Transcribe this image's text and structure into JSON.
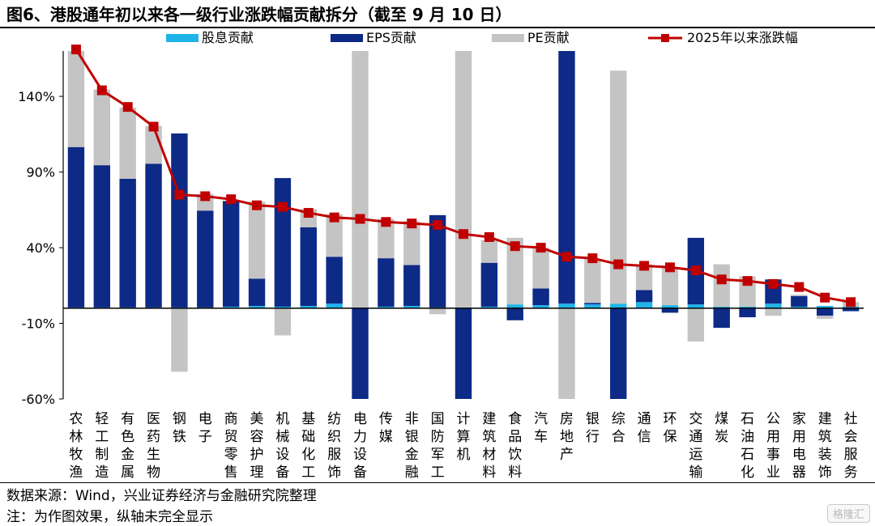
{
  "title": "图6、港股通年初以来各一级行业涨跌幅贡献拆分（截至 9 月 10 日）",
  "source": "数据来源：Wind，兴业证券经济与金融研究院整理",
  "note": "注：为作图效果，纵轴未完全显示",
  "watermark": "格隆汇",
  "colors": {
    "dividend": "#1fb4e8",
    "eps": "#0d2a86",
    "pe": "#c4c4c4",
    "line": "#c00000"
  },
  "chart_data": {
    "type": "bar",
    "stacked": true,
    "categories": [
      "农林牧渔",
      "轻工制造",
      "有色金属",
      "医药生物",
      "钢铁",
      "电子",
      "商贸零售",
      "美容护理",
      "机械设备",
      "基础化工",
      "纺织服饰",
      "电力设备",
      "传媒",
      "非银金融",
      "国防军工",
      "计算机",
      "建筑材料",
      "食品饮料",
      "汽车",
      "房地产",
      "银行",
      "综合",
      "通信",
      "环保",
      "交通运输",
      "煤炭",
      "石油石化",
      "公用事业",
      "家用电器",
      "建筑装饰",
      "社会服务"
    ],
    "yticks": [
      140,
      90,
      40,
      -10,
      -60
    ],
    "ytick_labels": [
      "140%",
      "90%",
      "40%",
      "-10%",
      "-60%"
    ],
    "ylim": [
      -60,
      170
    ],
    "series": [
      {
        "name": "股息贡献",
        "kind": "bar",
        "values": [
          0.5,
          0.5,
          0.5,
          0.5,
          0.5,
          0.5,
          1,
          1.5,
          1,
          1.5,
          3,
          0.5,
          1,
          1.5,
          0.5,
          0.5,
          1,
          2.5,
          2,
          3,
          2.5,
          3,
          4,
          2,
          2.5,
          1,
          1,
          3,
          1,
          1.5,
          1
        ]
      },
      {
        "name": "EPS贡献",
        "kind": "bar",
        "values": [
          106,
          94,
          85,
          95,
          115,
          64,
          70,
          18,
          85,
          52,
          31,
          -62,
          32,
          27,
          61,
          -62,
          29,
          -8,
          11,
          170,
          1,
          -62,
          8,
          -3,
          44,
          -13,
          -6,
          16,
          7,
          -5,
          -2
        ]
      },
      {
        "name": "PE贡献",
        "kind": "bar",
        "values": [
          64,
          50,
          47,
          25,
          -42,
          11,
          0,
          51,
          -18,
          12,
          28,
          170,
          26,
          29,
          -4,
          170,
          15,
          44,
          27,
          -62,
          29,
          154,
          17,
          25,
          -22,
          28,
          20,
          -5,
          1,
          -2,
          3
        ]
      },
      {
        "name": "2025年以来涨跌幅",
        "kind": "line",
        "values": [
          171,
          144,
          133,
          120,
          75,
          74,
          72,
          68,
          67,
          63,
          60,
          59,
          57,
          56,
          55,
          49,
          47,
          41,
          40,
          34,
          33,
          29,
          28,
          27,
          25,
          19,
          18,
          16,
          14,
          7,
          4
        ]
      }
    ]
  }
}
